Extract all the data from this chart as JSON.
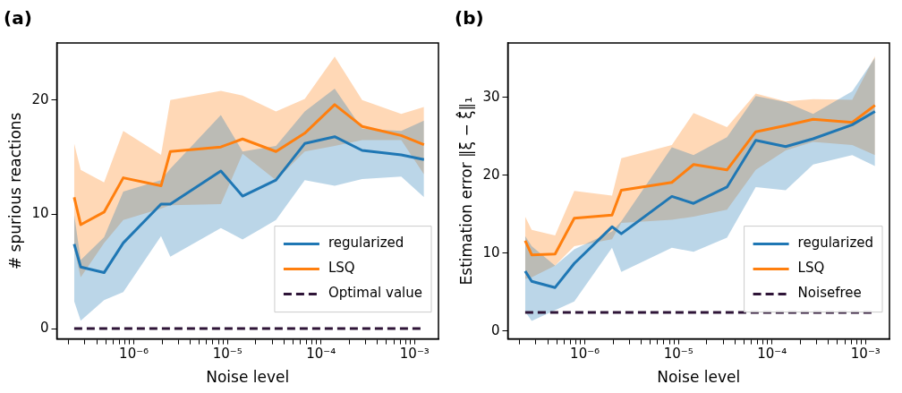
{
  "chart_data": [
    {
      "type": "line",
      "title": "(a)",
      "xlabel": "Noise level",
      "ylabel": "# spurious reactions",
      "log": "x",
      "grid": false,
      "legend": "bottom right",
      "marker": "none",
      "x": [
        2.3e-07,
        2.7e-07,
        4.8e-07,
        7.7e-07,
        1.95e-06,
        2.45e-06,
        8.5e-06,
        1.45e-05,
        3.3e-05,
        6.7e-05,
        0.00014,
        0.000275,
        0.00072,
        0.00126
      ],
      "xlim": [
        1.5e-07,
        0.0018
      ],
      "xticks": [
        {
          "value": 2e-07,
          "label": null
        },
        {
          "value": 3e-07,
          "label": null
        },
        {
          "value": 4e-07,
          "label": null
        },
        {
          "value": 5e-07,
          "label": null
        },
        {
          "value": 6e-07,
          "label": null
        },
        {
          "value": 7e-07,
          "label": null
        },
        {
          "value": 8e-07,
          "label": null
        },
        {
          "value": 9e-07,
          "label": null
        },
        {
          "value": 1e-06,
          "label": "10⁻⁶"
        },
        {
          "value": 2e-06,
          "label": null
        },
        {
          "value": 3e-06,
          "label": null
        },
        {
          "value": 4e-06,
          "label": null
        },
        {
          "value": 5e-06,
          "label": null
        },
        {
          "value": 6e-06,
          "label": null
        },
        {
          "value": 7e-06,
          "label": null
        },
        {
          "value": 8e-06,
          "label": null
        },
        {
          "value": 9e-06,
          "label": null
        },
        {
          "value": 1e-05,
          "label": "10⁻⁵"
        },
        {
          "value": 2e-05,
          "label": null
        },
        {
          "value": 3e-05,
          "label": null
        },
        {
          "value": 4e-05,
          "label": null
        },
        {
          "value": 5e-05,
          "label": null
        },
        {
          "value": 6e-05,
          "label": null
        },
        {
          "value": 7e-05,
          "label": null
        },
        {
          "value": 8e-05,
          "label": null
        },
        {
          "value": 9e-05,
          "label": null
        },
        {
          "value": 0.0001,
          "label": "10⁻⁴"
        },
        {
          "value": 0.0002,
          "label": null
        },
        {
          "value": 0.0003,
          "label": null
        },
        {
          "value": 0.0004,
          "label": null
        },
        {
          "value": 0.0005,
          "label": null
        },
        {
          "value": 0.0006,
          "label": null
        },
        {
          "value": 0.0007,
          "label": null
        },
        {
          "value": 0.0008,
          "label": null
        },
        {
          "value": 0.0009,
          "label": null
        },
        {
          "value": 0.001,
          "label": "10⁻³"
        }
      ],
      "ylim": [
        -0.9,
        25
      ],
      "yticks": [
        0,
        10,
        20
      ],
      "series": [
        {
          "name": "regularized",
          "color": "#1f77b4",
          "line_style": "solid",
          "values": [
            7.4,
            5.4,
            4.9,
            7.5,
            10.9,
            10.9,
            13.8,
            11.6,
            13.0,
            16.2,
            16.8,
            15.6,
            15.2,
            14.8
          ],
          "lower": [
            2.4,
            0.7,
            2.5,
            3.2,
            8.1,
            6.3,
            8.8,
            7.8,
            9.5,
            13.0,
            12.5,
            13.1,
            13.3,
            11.5
          ],
          "upper": [
            10.0,
            6.0,
            8.0,
            12.0,
            13.0,
            14.0,
            18.7,
            15.5,
            16.0,
            19.0,
            21.0,
            17.5,
            17.3,
            18.2
          ]
        },
        {
          "name": "LSQ",
          "color": "#ff7f0e",
          "line_style": "solid",
          "values": [
            11.5,
            9.1,
            10.2,
            13.2,
            12.5,
            15.5,
            15.9,
            16.6,
            15.5,
            17.1,
            19.6,
            17.7,
            16.9,
            16.1
          ],
          "lower": [
            7.0,
            4.5,
            7.5,
            9.5,
            10.5,
            10.8,
            10.9,
            15.3,
            13.0,
            15.5,
            16.0,
            16.5,
            16.5,
            13.5
          ],
          "upper": [
            16.2,
            13.9,
            12.8,
            17.3,
            15.2,
            20.0,
            20.8,
            20.4,
            19.0,
            20.1,
            23.8,
            20.0,
            18.8,
            19.4
          ]
        },
        {
          "name": "Optimal value",
          "color": "#2e1437",
          "line_style": "dashed",
          "values": [
            0,
            0,
            0,
            0,
            0,
            0,
            0,
            0,
            0,
            0,
            0,
            0,
            0,
            0
          ]
        }
      ]
    },
    {
      "type": "line",
      "title": "(b)",
      "xlabel": "Noise level",
      "ylabel": "Estimation error ‖ξ − ξ̂‖₁",
      "log": "x",
      "grid": false,
      "legend": "bottom right",
      "marker": "none",
      "x": [
        2.3e-07,
        2.7e-07,
        4.8e-07,
        7.7e-07,
        1.95e-06,
        2.45e-06,
        8.5e-06,
        1.45e-05,
        3.3e-05,
        6.7e-05,
        0.00014,
        0.000275,
        0.00072,
        0.00126
      ],
      "xlim": [
        1.5e-07,
        0.0018
      ],
      "xticks": [
        {
          "value": 2e-07,
          "label": null
        },
        {
          "value": 3e-07,
          "label": null
        },
        {
          "value": 4e-07,
          "label": null
        },
        {
          "value": 5e-07,
          "label": null
        },
        {
          "value": 6e-07,
          "label": null
        },
        {
          "value": 7e-07,
          "label": null
        },
        {
          "value": 8e-07,
          "label": null
        },
        {
          "value": 9e-07,
          "label": null
        },
        {
          "value": 1e-06,
          "label": "10⁻⁶"
        },
        {
          "value": 2e-06,
          "label": null
        },
        {
          "value": 3e-06,
          "label": null
        },
        {
          "value": 4e-06,
          "label": null
        },
        {
          "value": 5e-06,
          "label": null
        },
        {
          "value": 6e-06,
          "label": null
        },
        {
          "value": 7e-06,
          "label": null
        },
        {
          "value": 8e-06,
          "label": null
        },
        {
          "value": 9e-06,
          "label": null
        },
        {
          "value": 1e-05,
          "label": "10⁻⁵"
        },
        {
          "value": 2e-05,
          "label": null
        },
        {
          "value": 3e-05,
          "label": null
        },
        {
          "value": 4e-05,
          "label": null
        },
        {
          "value": 5e-05,
          "label": null
        },
        {
          "value": 6e-05,
          "label": null
        },
        {
          "value": 7e-05,
          "label": null
        },
        {
          "value": 8e-05,
          "label": null
        },
        {
          "value": 9e-05,
          "label": null
        },
        {
          "value": 0.0001,
          "label": "10⁻⁴"
        },
        {
          "value": 0.0002,
          "label": null
        },
        {
          "value": 0.0003,
          "label": null
        },
        {
          "value": 0.0004,
          "label": null
        },
        {
          "value": 0.0005,
          "label": null
        },
        {
          "value": 0.0006,
          "label": null
        },
        {
          "value": 0.0007,
          "label": null
        },
        {
          "value": 0.0008,
          "label": null
        },
        {
          "value": 0.0009,
          "label": null
        },
        {
          "value": 0.001,
          "label": "10⁻³"
        }
      ],
      "ylim": [
        -1,
        37
      ],
      "yticks": [
        0,
        10,
        20,
        30
      ],
      "series": [
        {
          "name": "regularized",
          "color": "#1f77b4",
          "line_style": "solid",
          "values": [
            7.7,
            6.4,
            5.6,
            8.7,
            13.4,
            12.5,
            17.3,
            16.4,
            18.5,
            24.5,
            23.7,
            24.7,
            26.5,
            28.2
          ],
          "lower": [
            2.5,
            1.3,
            2.7,
            3.8,
            10.7,
            7.6,
            10.7,
            10.2,
            12.0,
            18.5,
            18.1,
            21.4,
            22.6,
            21.2
          ],
          "upper": [
            12.2,
            10.9,
            8.4,
            10.5,
            12.8,
            14.1,
            23.6,
            22.6,
            24.9,
            30.2,
            29.4,
            27.9,
            30.8,
            35.1
          ]
        },
        {
          "name": "LSQ",
          "color": "#ff7f0e",
          "line_style": "solid",
          "values": [
            11.6,
            9.8,
            9.9,
            14.5,
            14.9,
            18.1,
            19.1,
            21.4,
            20.7,
            25.6,
            26.4,
            27.2,
            26.8,
            29.0
          ],
          "lower": [
            6.7,
            6.9,
            8.4,
            10.9,
            11.8,
            13.9,
            14.3,
            14.7,
            15.6,
            20.7,
            23.2,
            24.3,
            23.9,
            22.6
          ],
          "upper": [
            14.7,
            13.0,
            12.3,
            18.0,
            17.4,
            22.2,
            23.9,
            28.0,
            26.2,
            30.5,
            29.5,
            29.8,
            29.7,
            35.3
          ]
        },
        {
          "name": "Noisefree",
          "color": "#2e1437",
          "line_style": "dashed",
          "values": [
            2.4,
            2.4,
            2.4,
            2.4,
            2.4,
            2.4,
            2.4,
            2.4,
            2.4,
            2.4,
            2.4,
            2.4,
            2.4,
            2.4
          ]
        }
      ]
    }
  ]
}
